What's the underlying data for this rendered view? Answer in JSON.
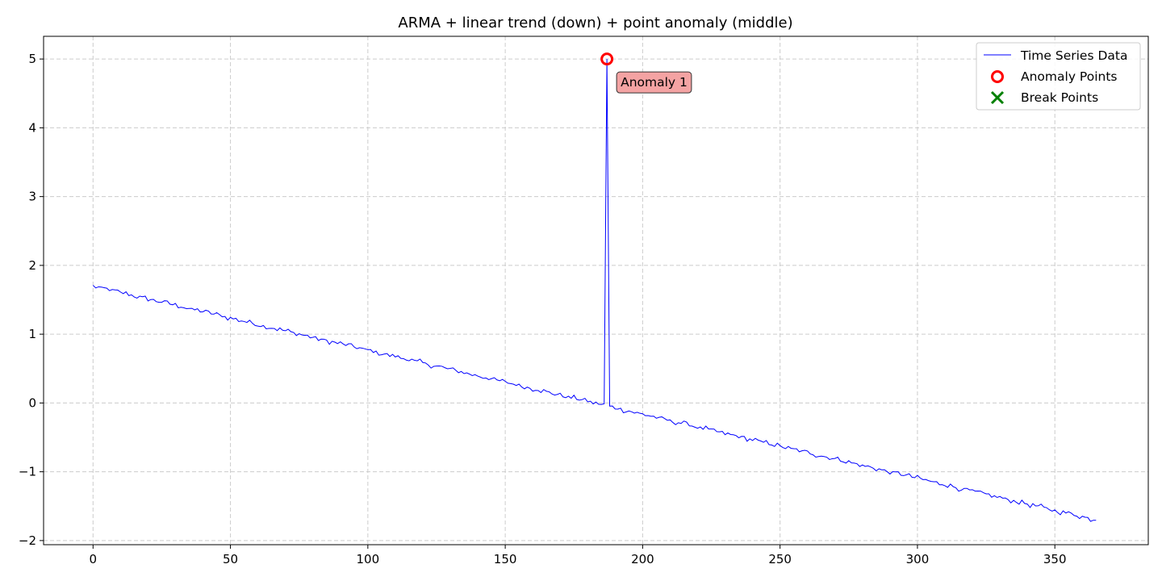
{
  "chart_data": {
    "type": "line",
    "title": "ARMA + linear trend (down) + point anomaly (middle)",
    "xlabel": "",
    "ylabel": "",
    "xlim": [
      -18,
      384
    ],
    "ylim": [
      -2.06,
      5.33
    ],
    "xticks": [
      0,
      50,
      100,
      150,
      200,
      250,
      300,
      350
    ],
    "yticks": [
      -2,
      -1,
      0,
      1,
      2,
      3,
      4,
      5
    ],
    "grid": true,
    "legend_placement": "top-right",
    "legend": [
      "Time Series Data",
      "Anomaly Points",
      "Break Points"
    ],
    "series": [
      {
        "name": "Time Series Data",
        "color": "#0000ff",
        "trend": {
          "x_start": 0,
          "x_end": 365,
          "y_start": 1.7,
          "y_end": -1.7
        },
        "anomaly_index": 187,
        "anomaly_value": 5.0,
        "noise_amplitude": 0.03,
        "point_count": 366
      }
    ],
    "anomaly_points": [
      {
        "x": 187,
        "y": 5.0,
        "label": "Anomaly 1"
      }
    ],
    "break_points": [],
    "colors": {
      "line": "#0000ff",
      "anomaly": "#ff0000",
      "break": "#008000",
      "annotation_bg": "#f4a3a3",
      "grid": "#cccccc"
    }
  }
}
